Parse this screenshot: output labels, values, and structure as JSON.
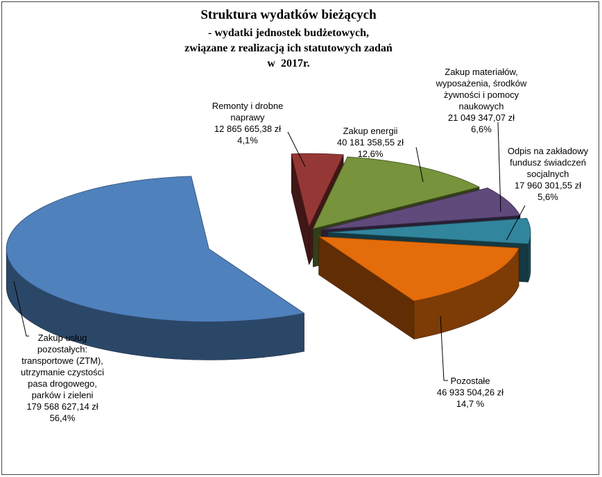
{
  "chart_data": {
    "type": "pie",
    "title": "Struktura wydatków bieżących",
    "subtitle_lines": [
      "- wydatki jednostek budżetowych,",
      "związane z realizacją ich statutowych zadań",
      "w  2017r."
    ],
    "slices": [
      {
        "id": "remonty",
        "label_lines": [
          "Remonty i drobne",
          "naprawy"
        ],
        "amount": "12 865 665,38 zł",
        "percent_label": "4,1%",
        "value": 4.1,
        "color": "#953735"
      },
      {
        "id": "energia",
        "label_lines": [
          "Zakup  energii"
        ],
        "amount": "40 181 358,55 zł",
        "percent_label": "12,6%",
        "value": 12.6,
        "color": "#77933C"
      },
      {
        "id": "materialy",
        "label_lines": [
          "Zakup  materiałów,",
          "wyposażenia,  środków",
          "żywności i pomocy",
          "naukowych"
        ],
        "amount": "21 049 347,07  zł",
        "percent_label": "6,6%",
        "value": 6.6,
        "color": "#604A7B"
      },
      {
        "id": "zfss",
        "label_lines": [
          "Odpis na zakładowy",
          "fundusz świadczeń",
          "socjalnych"
        ],
        "amount": "17 960 301,55 zł",
        "percent_label": "5,6%",
        "value": 5.6,
        "color": "#31859C"
      },
      {
        "id": "pozostale",
        "label_lines": [
          "Pozostałe"
        ],
        "amount": "46 933 504,26 zł",
        "percent_label": "14,7 %",
        "value": 14.7,
        "color": "#E46C0A"
      },
      {
        "id": "uslugi",
        "label_lines": [
          "Zakup  usług",
          "pozostałych:",
          "transportowe (ZTM),",
          "utrzymanie czystości",
          "pasa drogowego,",
          "parków  i zieleni"
        ],
        "amount": "179 568 627,14  zł",
        "percent_label": "56,4%",
        "value": 56.4,
        "color": "#4F81BD"
      }
    ],
    "legend": "none",
    "exploded": true,
    "three_d": true
  }
}
